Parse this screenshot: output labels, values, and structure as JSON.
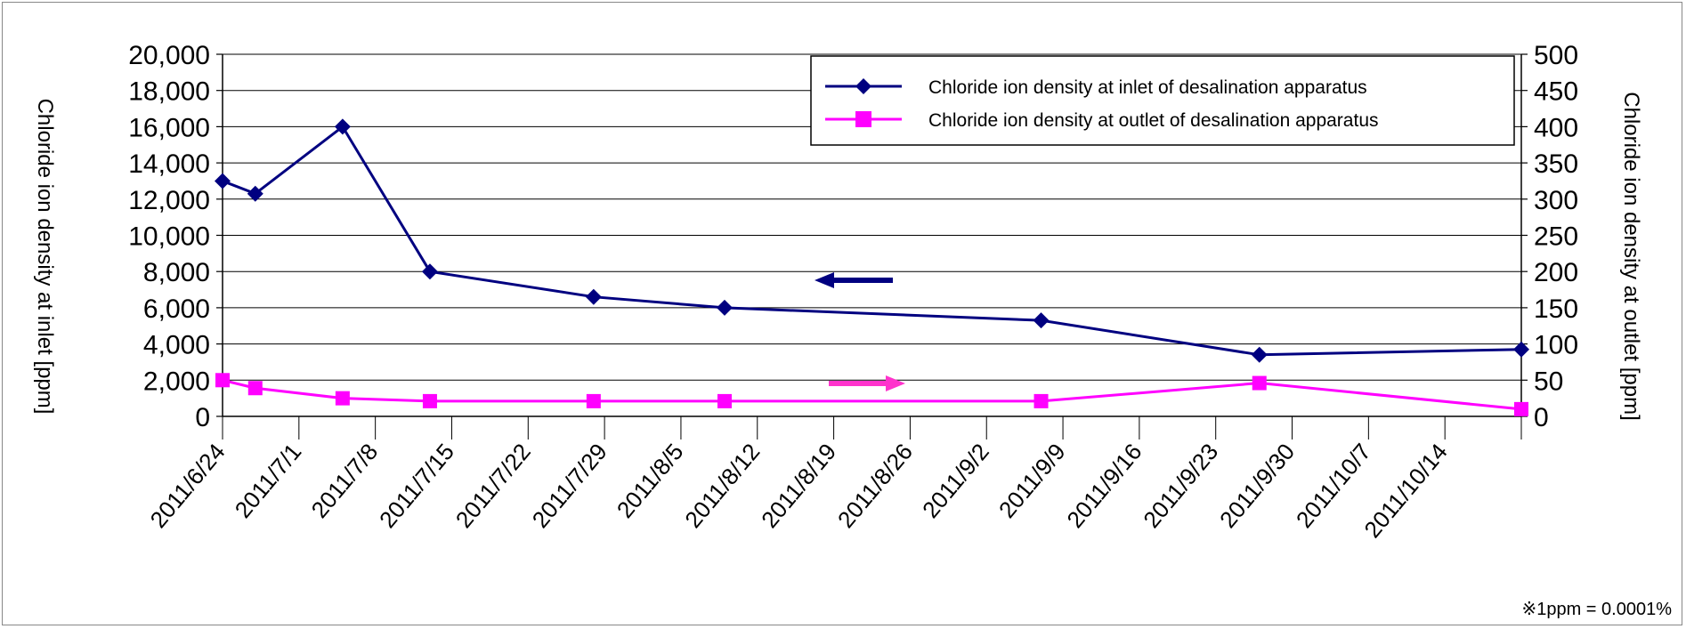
{
  "chart_data": {
    "type": "line",
    "x_label_dates": [
      "2011/6/24",
      "2011/7/1",
      "2011/7/8",
      "2011/7/15",
      "2011/7/22",
      "2011/7/29",
      "2011/8/5",
      "2011/8/12",
      "2011/8/19",
      "2011/8/26",
      "2011/9/2",
      "2011/9/9",
      "2011/9/16",
      "2011/9/23",
      "2011/9/30",
      "2011/10/7",
      "2011/10/14"
    ],
    "x_range": [
      "2011/6/24",
      "2011/10/21"
    ],
    "left_axis": {
      "label": "Chloride ion density at inlet [ppm]",
      "range": [
        0,
        20000
      ],
      "ticks": [
        "0",
        "2,000",
        "4,000",
        "6,000",
        "8,000",
        "10,000",
        "12,000",
        "14,000",
        "16,000",
        "18,000",
        "20,000"
      ]
    },
    "right_axis": {
      "label": "Chloride ion density at outlet [ppm]",
      "range": [
        0,
        500
      ],
      "ticks": [
        "0",
        "50",
        "100",
        "150",
        "200",
        "250",
        "300",
        "350",
        "400",
        "450",
        "500"
      ]
    },
    "series": [
      {
        "name": "Chloride ion density at inlet of desalination apparatus",
        "axis": "left",
        "color": "#000080",
        "marker": "diamond",
        "points": [
          {
            "x": "2011/6/24",
            "y": 13000
          },
          {
            "x": "2011/6/27",
            "y": 12300
          },
          {
            "x": "2011/7/5",
            "y": 16000
          },
          {
            "x": "2011/7/13",
            "y": 8000
          },
          {
            "x": "2011/7/28",
            "y": 6600
          },
          {
            "x": "2011/8/9",
            "y": 6000
          },
          {
            "x": "2011/9/7",
            "y": 5300
          },
          {
            "x": "2011/9/27",
            "y": 3400
          },
          {
            "x": "2011/10/21",
            "y": 3700
          }
        ]
      },
      {
        "name": "Chloride ion density at outlet of desalination apparatus",
        "axis": "right",
        "color": "#ff00ff",
        "marker": "square",
        "points": [
          {
            "x": "2011/6/24",
            "y": 50
          },
          {
            "x": "2011/6/27",
            "y": 39
          },
          {
            "x": "2011/7/5",
            "y": 25
          },
          {
            "x": "2011/7/13",
            "y": 21
          },
          {
            "x": "2011/7/28",
            "y": 21
          },
          {
            "x": "2011/8/9",
            "y": 21
          },
          {
            "x": "2011/9/7",
            "y": 21
          },
          {
            "x": "2011/9/27",
            "y": 46
          },
          {
            "x": "2011/10/21",
            "y": 10
          }
        ]
      }
    ],
    "grid": true,
    "legend_position": "top-right",
    "annotations": {
      "left_arrow_color": "#000080",
      "right_arrow_color": "#ff33cc"
    },
    "note": "※1ppm = 0.0001%"
  }
}
